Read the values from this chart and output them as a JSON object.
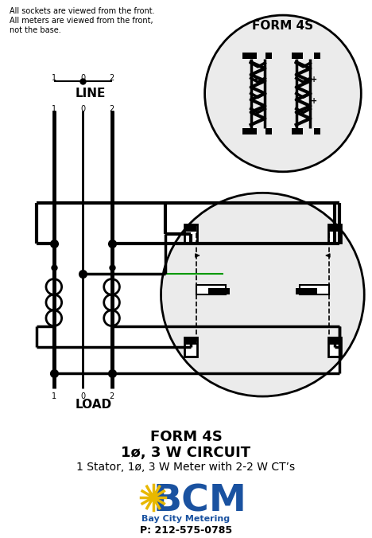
{
  "bg_color": "#ffffff",
  "black": "#000000",
  "green": "#009900",
  "lt_gray": "#ebebeb",
  "bcm_blue": "#1a52a0",
  "sun_yellow": "#e8b800",
  "note1": "All sockets are viewed from the front.",
  "note2": "All meters are viewed from the front,",
  "note3": "not the base.",
  "form_label": "FORM 4S",
  "line_label": "LINE",
  "load_label": "LOAD",
  "caption1": "FORM 4S",
  "caption2": "1ø, 3 W CIRCUIT",
  "caption3": "1 Stator, 1ø, 3 W Meter with 2-2 W CT’s",
  "bcm_name": "Bay City Metering",
  "phone": "P: 212-575-0785",
  "figsize": [
    4.68,
    6.76
  ],
  "dpi": 100
}
